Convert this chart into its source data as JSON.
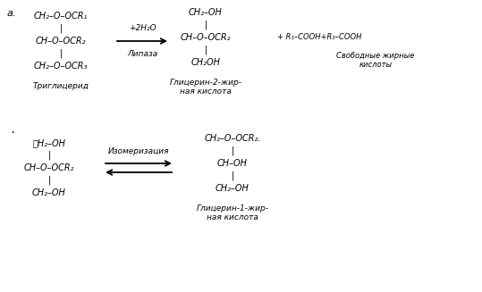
{
  "bg_color": "#ffffff",
  "fig_width": 5.39,
  "fig_height": 3.27,
  "dpi": 100,
  "label_a": "a.",
  "top_left_lines": [
    "CH₂–O–OCR₁",
    "|",
    "CH–O–OCR₂",
    "|",
    "CH₂–O–OCR₃"
  ],
  "top_left_label": "Триглицерид",
  "arrow1_label_top": "+2H₂O",
  "arrow1_label_bot": "Липаза",
  "top_right_lines": [
    "CH₂–OH",
    "|",
    "CH–O–OCR₂",
    "|",
    "CH₂OH"
  ],
  "top_right_label": "Глицерин-2-жир-\nная кислота",
  "plus_products": "+ R₁–COOH+R₃–COOH",
  "free_acids_label": "Свободные жирные\nкислоты",
  "bot_left_lines": [
    "ⱸH₂–OH",
    "|",
    "CH–O–OCR₂",
    "|",
    "CH₂–OH"
  ],
  "arrow2_label": "Изомеризация",
  "bot_right_lines": [
    "CH₂–O–OCR₂.",
    "|",
    "CH–OH",
    "|",
    "CH₂–OH"
  ],
  "bot_right_label": "Глицерин-1-жир-\nная кислота"
}
